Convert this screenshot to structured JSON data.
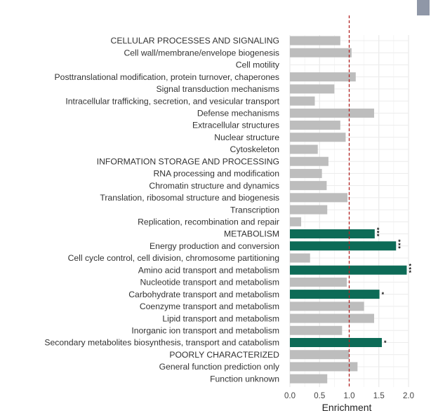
{
  "chart_data": {
    "type": "bar",
    "orientation": "horizontal",
    "xlabel": "Enrichment",
    "ylabel": "",
    "xlim": [
      0,
      2.0
    ],
    "xticks": [
      0.0,
      0.5,
      1.0,
      1.5,
      2.0
    ],
    "xtick_labels": [
      "0.0",
      "0.5",
      "1.0",
      "1.5",
      "2.0"
    ],
    "reference_line": 1.0,
    "grid": true,
    "colors": {
      "default": "#bdbdbd",
      "significant": "#0d6b57",
      "reference": "#b22222"
    },
    "categories": [
      "CELLULAR PROCESSES AND SIGNALING",
      "Cell wall/membrane/envelope biogenesis",
      "Cell motility",
      "Posttranslational modification, protein turnover, chaperones",
      "Signal transduction mechanisms",
      "Intracellular trafficking, secretion, and vesicular transport",
      "Defense mechanisms",
      "Extracellular structures",
      "Nuclear structure",
      "Cytoskeleton",
      "INFORMATION STORAGE AND PROCESSING",
      "RNA processing and modification",
      "Chromatin structure and dynamics",
      "Translation, ribosomal structure and biogenesis",
      "Transcription",
      "Replication, recombination and repair",
      "METABOLISM",
      "Energy production and conversion",
      "Cell cycle control, cell division, chromosome partitioning",
      "Amino acid transport and metabolism",
      "Nucleotide transport and metabolism",
      "Carbohydrate transport and metabolism",
      "Coenzyme transport and metabolism",
      "Lipid transport and metabolism",
      "Inorganic ion transport and metabolism",
      "Secondary metabolites biosynthesis, transport and catabolism",
      "POORLY CHARACTERIZED",
      "General function prediction only",
      "Function unknown"
    ],
    "values": [
      0.85,
      1.04,
      0.0,
      1.11,
      0.75,
      0.42,
      1.42,
      0.85,
      0.94,
      0.47,
      0.65,
      0.54,
      0.62,
      0.97,
      0.63,
      0.19,
      1.43,
      1.79,
      0.34,
      1.97,
      0.96,
      1.51,
      1.25,
      1.42,
      0.88,
      1.55,
      1.0,
      1.14,
      0.63
    ],
    "significant": [
      false,
      false,
      false,
      false,
      false,
      false,
      false,
      false,
      false,
      false,
      false,
      false,
      false,
      false,
      false,
      false,
      true,
      true,
      false,
      true,
      false,
      true,
      false,
      false,
      false,
      true,
      false,
      false,
      false
    ],
    "significance_labels": [
      "",
      "",
      "",
      "",
      "",
      "",
      "",
      "",
      "",
      "",
      "",
      "",
      "",
      "",
      "",
      "",
      "***",
      "***",
      "",
      "***",
      "",
      "*",
      "",
      "",
      "",
      "*",
      "",
      "",
      ""
    ]
  }
}
